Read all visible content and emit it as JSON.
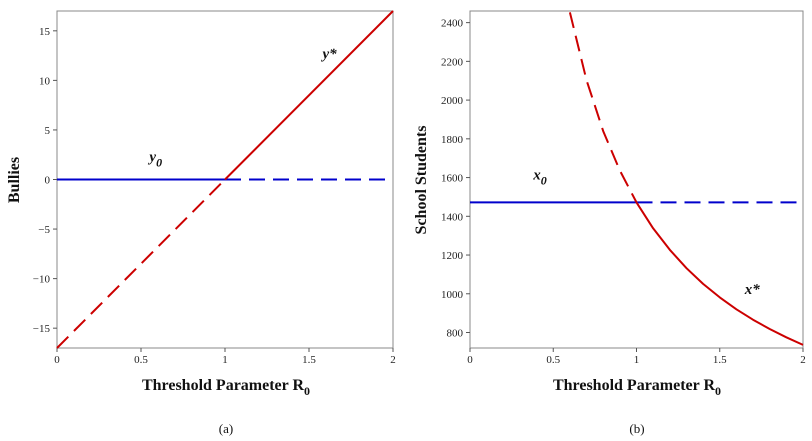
{
  "chart_data": [
    {
      "type": "line",
      "xlabel": "Threshold Parameter R",
      "xlabel_subscript": "0",
      "ylabel": "Bullies",
      "caption": "(a)",
      "xlim": [
        0,
        2
      ],
      "ylim": [
        -17,
        17
      ],
      "x_ticks": [
        0,
        0.5,
        1,
        1.5,
        2
      ],
      "y_ticks": [
        -15,
        -10,
        -5,
        0,
        5,
        10,
        15
      ],
      "series": [
        {
          "name": "y0",
          "color": "#0000cc",
          "style": "solid",
          "x": [
            0,
            1
          ],
          "y": [
            0,
            0
          ]
        },
        {
          "name": "y0",
          "color": "#0000cc",
          "style": "dashed",
          "x": [
            1,
            2
          ],
          "y": [
            0,
            0
          ]
        },
        {
          "name": "y*",
          "color": "#cc0000",
          "style": "dashed",
          "x": [
            0,
            1
          ],
          "y": [
            -17,
            0
          ]
        },
        {
          "name": "y*",
          "color": "#cc0000",
          "style": "solid",
          "x": [
            1,
            2
          ],
          "y": [
            0,
            17
          ]
        }
      ],
      "annotations": [
        {
          "label": "y",
          "subscript": "0",
          "x": 0.55,
          "y": 1.8
        },
        {
          "label": "y*",
          "subscript": "",
          "x": 1.58,
          "y": 12.2
        }
      ]
    },
    {
      "type": "line",
      "xlabel": "Threshold Parameter R",
      "xlabel_subscript": "0",
      "ylabel": "School Students",
      "caption": "(b)",
      "xlim": [
        0,
        2
      ],
      "ylim": [
        720,
        2460
      ],
      "x_ticks": [
        0,
        0.5,
        1,
        1.5,
        2
      ],
      "y_ticks": [
        800,
        1000,
        1200,
        1400,
        1600,
        1800,
        2000,
        2200,
        2400
      ],
      "series": [
        {
          "name": "x0",
          "color": "#0000cc",
          "style": "solid",
          "x": [
            0,
            1
          ],
          "y": [
            1472,
            1472
          ]
        },
        {
          "name": "x0",
          "color": "#0000cc",
          "style": "dashed",
          "x": [
            1,
            2
          ],
          "y": [
            1472,
            1472
          ]
        },
        {
          "name": "x*",
          "color": "#cc0000",
          "style": "dashed",
          "x": [
            0.6,
            0.7,
            0.8,
            0.9,
            1.0
          ],
          "y": [
            2453,
            2103,
            1840,
            1636,
            1472
          ]
        },
        {
          "name": "x*",
          "color": "#cc0000",
          "style": "solid",
          "x": [
            1.0,
            1.1,
            1.2,
            1.3,
            1.4,
            1.5,
            1.6,
            1.7,
            1.8,
            1.9,
            2.0
          ],
          "y": [
            1472,
            1338,
            1227,
            1132,
            1051,
            981,
            920,
            866,
            818,
            775,
            736
          ]
        }
      ],
      "annotations": [
        {
          "label": "x",
          "subscript": "0",
          "x": 0.38,
          "y": 1590
        },
        {
          "label": "x*",
          "subscript": "",
          "x": 1.65,
          "y": 1000
        }
      ]
    }
  ]
}
